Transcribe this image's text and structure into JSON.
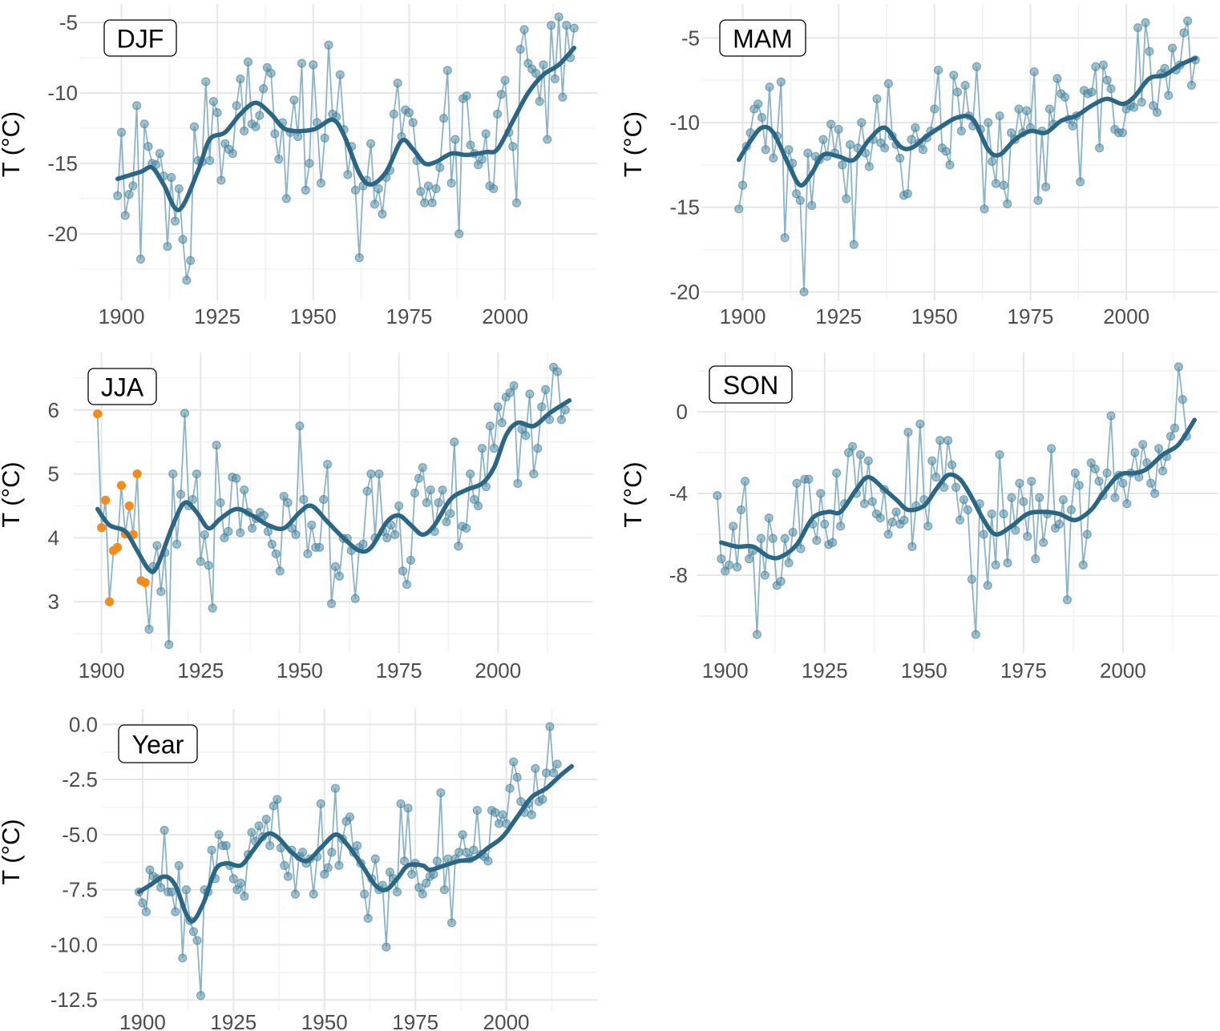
{
  "chart_data": [
    {
      "type": "line",
      "panel_label": "DJF",
      "ylabel": "T (°C)",
      "xlim": [
        1893,
        2024
      ],
      "ylim": [
        -24.5,
        -3.8
      ],
      "xticks": [
        "1900",
        "1925",
        "1950",
        "1975",
        "2000"
      ],
      "yticks": [
        "-5",
        "-10",
        "-15",
        "-20"
      ],
      "grid": true,
      "first_year": 1899,
      "values": [
        -17.3,
        -12.8,
        -18.7,
        -17.2,
        -16.6,
        -10.9,
        -21.8,
        -12.2,
        -13.8,
        -15.0,
        -15.1,
        -14.3,
        -15.9,
        -20.9,
        -16.0,
        -19.1,
        -16.8,
        -20.4,
        -23.3,
        -21.9,
        -12.4,
        -14.8,
        -14.9,
        -9.2,
        -14.8,
        -10.6,
        -11.4,
        -16.2,
        -13.6,
        -14.0,
        -14.3,
        -10.9,
        -9.0,
        -12.7,
        -7.8,
        -12.2,
        -12.4,
        -11.6,
        -9.7,
        -8.2,
        -8.6,
        -12.9,
        -14.7,
        -12.1,
        -17.5,
        -12.8,
        -10.5,
        -13.1,
        -7.9,
        -16.9,
        -15.0,
        -8.0,
        -12.1,
        -16.4,
        -13.2,
        -6.6,
        -11.5,
        -11.7,
        -8.7,
        -12.6,
        -15.8,
        -13.8,
        -16.9,
        -21.7,
        -16.6,
        -16.2,
        -13.6,
        -17.9,
        -16.8,
        -18.6,
        -16.0,
        -15.5,
        -11.5,
        -9.3,
        -13.1,
        -11.2,
        -11.4,
        -12.1,
        -14.8,
        -17.0,
        -17.8,
        -16.6,
        -17.8,
        -16.8,
        -15.3,
        -11.8,
        -8.4,
        -16.4,
        -13.3,
        -20.0,
        -10.4,
        -10.2,
        -13.7,
        -14.3,
        -15.1,
        -14.7,
        -12.9,
        -16.6,
        -16.8,
        -11.5,
        -10.1,
        -9.1,
        -12.8,
        -13.8,
        -17.8,
        -6.9,
        -5.5,
        -7.9,
        -8.3,
        -8.6,
        -10.6,
        -8.0,
        -13.3,
        -5.2,
        -9.0,
        -4.6,
        -10.3,
        -5.2,
        -7.5,
        -5.4
      ],
      "smooth": {
        "x": [
          1899,
          1905,
          1908,
          1911,
          1915,
          1920,
          1923,
          1927,
          1931,
          1935,
          1939,
          1943,
          1950,
          1955,
          1958,
          1962,
          1965,
          1969,
          1973,
          1976,
          1979,
          1982,
          1986,
          1990,
          1995,
          1998,
          2002,
          2006,
          2010,
          2014,
          2018
        ],
        "y": [
          -16.1,
          -15.6,
          -15.3,
          -16.5,
          -18.3,
          -15.5,
          -13.3,
          -12.8,
          -11.5,
          -10.7,
          -11.5,
          -12.6,
          -12.6,
          -11.9,
          -13.0,
          -15.7,
          -16.5,
          -15.6,
          -13.4,
          -14.0,
          -15.0,
          -14.9,
          -14.3,
          -14.4,
          -14.2,
          -14.0,
          -12.0,
          -10.0,
          -8.7,
          -8.0,
          -6.8
        ]
      }
    },
    {
      "type": "line",
      "panel_label": "MAM",
      "ylabel": "T (°C)",
      "xlim": [
        1893,
        2024
      ],
      "ylim": [
        -20.5,
        -3.0
      ],
      "xticks": [
        "1900",
        "1925",
        "1950",
        "1975",
        "2000"
      ],
      "yticks": [
        "-5",
        "-10",
        "-15",
        "-20"
      ],
      "grid": true,
      "first_year": 1899,
      "values": [
        -15.1,
        -13.7,
        -11.4,
        -10.6,
        -9.2,
        -8.9,
        -9.7,
        -11.6,
        -7.9,
        -12.1,
        -10.8,
        -7.6,
        -16.8,
        -11.6,
        -12.4,
        -14.2,
        -14.6,
        -20.0,
        -11.8,
        -14.9,
        -12.0,
        -12.2,
        -11.0,
        -12.0,
        -10.1,
        -11.8,
        -10.4,
        -12.5,
        -14.5,
        -11.3,
        -17.2,
        -11.5,
        -10.0,
        -11.8,
        -12.6,
        -11.0,
        -8.6,
        -11.2,
        -11.5,
        -7.7,
        -10.8,
        -11.3,
        -12.1,
        -14.3,
        -14.2,
        -11.0,
        -10.3,
        -11.2,
        -11.6,
        -10.9,
        -10.5,
        -9.2,
        -6.9,
        -11.5,
        -11.7,
        -12.5,
        -7.2,
        -8.2,
        -10.5,
        -7.8,
        -9.6,
        -10.2,
        -6.7,
        -10.4,
        -15.1,
        -10.0,
        -12.3,
        -13.6,
        -9.6,
        -13.7,
        -14.8,
        -10.6,
        -11.0,
        -9.2,
        -10.6,
        -9.3,
        -10.3,
        -7.0,
        -14.6,
        -10.5,
        -13.8,
        -9.2,
        -10.1,
        -7.4,
        -8.3,
        -8.5,
        -9.8,
        -10.2,
        -9.6,
        -13.5,
        -8.1,
        -8.3,
        -8.2,
        -6.7,
        -11.5,
        -6.6,
        -7.5,
        -8.0,
        -10.4,
        -10.6,
        -10.6,
        -9.2,
        -9.0,
        -9.1,
        -4.4,
        -8.8,
        -4.1,
        -5.8,
        -9.0,
        -9.4,
        -7.1,
        -6.8,
        -8.4,
        -5.6,
        -6.9,
        -6.6,
        -4.7,
        -4.0,
        -7.8,
        -6.3
      ],
      "smooth": {
        "x": [
          1899,
          1902,
          1905,
          1908,
          1912,
          1915,
          1918,
          1921,
          1925,
          1929,
          1933,
          1937,
          1941,
          1944,
          1948,
          1952,
          1956,
          1960,
          1964,
          1967,
          1971,
          1975,
          1979,
          1983,
          1987,
          1991,
          1995,
          1999,
          2002,
          2006,
          2010,
          2014,
          2018
        ],
        "y": [
          -12.2,
          -11.1,
          -10.3,
          -10.6,
          -12.5,
          -13.7,
          -13.0,
          -11.9,
          -12.0,
          -12.2,
          -11.0,
          -10.3,
          -11.4,
          -11.5,
          -10.8,
          -10.2,
          -9.7,
          -9.8,
          -11.6,
          -11.9,
          -11.0,
          -10.5,
          -10.6,
          -9.9,
          -9.6,
          -9.0,
          -8.6,
          -8.9,
          -8.5,
          -7.4,
          -7.2,
          -6.6,
          -6.2
        ]
      }
    },
    {
      "type": "line",
      "panel_label": "JJA",
      "ylabel": "T (°C)",
      "xlim": [
        1893,
        2024
      ],
      "ylim": [
        2.2,
        6.9
      ],
      "xticks": [
        "1900",
        "1925",
        "1950",
        "1975",
        "2000"
      ],
      "yticks": [
        "3",
        "4",
        "5",
        "6"
      ],
      "grid": true,
      "first_year": 1899,
      "highlight": {
        "years": [
          1899,
          1911
        ],
        "color": "#f28c1c"
      },
      "values": [
        5.94,
        4.16,
        4.59,
        3.0,
        3.8,
        3.85,
        4.82,
        4.06,
        4.5,
        4.05,
        5.0,
        3.33,
        3.3,
        2.57,
        3.55,
        3.88,
        3.16,
        3.77,
        2.33,
        5.0,
        3.9,
        4.68,
        5.95,
        4.5,
        4.6,
        5.0,
        3.63,
        4.05,
        3.57,
        2.9,
        5.45,
        4.55,
        4.0,
        4.1,
        4.95,
        4.93,
        4.08,
        4.75,
        4.4,
        4.15,
        4.3,
        4.4,
        4.35,
        4.1,
        3.9,
        3.75,
        3.48,
        4.65,
        4.55,
        4.15,
        4.05,
        5.75,
        4.6,
        3.75,
        4.2,
        3.85,
        3.85,
        4.6,
        5.15,
        2.97,
        3.55,
        3.4,
        3.99,
        3.99,
        3.8,
        3.05,
        3.85,
        3.9,
        4.73,
        5.0,
        4.0,
        5.0,
        4.1,
        4.0,
        4.2,
        4.05,
        4.5,
        3.48,
        3.27,
        3.65,
        4.7,
        4.93,
        5.1,
        4.55,
        4.75,
        4.1,
        4.55,
        4.75,
        4.25,
        4.38,
        5.5,
        3.87,
        4.18,
        4.15,
        5.0,
        4.6,
        4.5,
        5.4,
        4.8,
        5.75,
        5.4,
        6.05,
        5.8,
        6.2,
        6.27,
        6.38,
        4.85,
        5.7,
        5.6,
        6.25,
        5.0,
        5.4,
        6.05,
        6.32,
        5.85,
        6.67,
        6.6,
        5.85,
        6.0
      ],
      "smooth": {
        "x": [
          1899,
          1902,
          1906,
          1909,
          1912,
          1914,
          1918,
          1921,
          1924,
          1927,
          1930,
          1934,
          1938,
          1942,
          1946,
          1950,
          1953,
          1957,
          1961,
          1965,
          1968,
          1972,
          1975,
          1978,
          1981,
          1984,
          1988,
          1992,
          1996,
          1999,
          2002,
          2005,
          2009,
          2013,
          2018
        ],
        "y": [
          4.45,
          4.2,
          4.1,
          3.8,
          3.5,
          3.55,
          4.2,
          4.55,
          4.4,
          4.15,
          4.3,
          4.45,
          4.35,
          4.2,
          4.15,
          4.4,
          4.5,
          4.25,
          4.0,
          3.8,
          3.85,
          4.25,
          4.35,
          4.2,
          4.05,
          4.2,
          4.6,
          4.75,
          4.85,
          5.1,
          5.6,
          5.8,
          5.75,
          5.95,
          6.15
        ]
      }
    },
    {
      "type": "line",
      "panel_label": "SON",
      "ylabel": "T (°C)",
      "xlim": [
        1893,
        2024
      ],
      "ylim": [
        -11.8,
        2.9
      ],
      "xticks": [
        "1900",
        "1925",
        "1950",
        "1975",
        "2000"
      ],
      "yticks": [
        "0",
        "-4",
        "-8"
      ],
      "grid": true,
      "first_year": 1898,
      "values": [
        -4.1,
        -7.2,
        -7.8,
        -7.5,
        -5.6,
        -7.6,
        -4.8,
        -3.4,
        -7.2,
        -6.8,
        -10.9,
        -6.2,
        -8.0,
        -5.2,
        -6.2,
        -8.5,
        -8.3,
        -6.2,
        -7.4,
        -5.9,
        -3.5,
        -6.7,
        -3.3,
        -3.3,
        -5.5,
        -6.3,
        -4.0,
        -5.5,
        -6.5,
        -6.4,
        -3.0,
        -5.6,
        -4.5,
        -2.0,
        -1.7,
        -4.0,
        -2.1,
        -4.5,
        -2.4,
        -4.4,
        -5.0,
        -5.2,
        -3.8,
        -6.0,
        -5.4,
        -4.9,
        -5.5,
        -5.3,
        -1.0,
        -6.6,
        -4.6,
        -0.6,
        -4.3,
        -5.6,
        -2.4,
        -3.2,
        -1.4,
        -3.7,
        -1.4,
        -2.6,
        -3.7,
        -5.3,
        -4.3,
        -4.8,
        -8.2,
        -10.9,
        -4.5,
        -6.0,
        -8.5,
        -5.0,
        -7.5,
        -2.1,
        -5.0,
        -7.4,
        -4.2,
        -5.8,
        -3.5,
        -4.4,
        -6.1,
        -3.4,
        -7.2,
        -4.2,
        -6.4,
        -5.0,
        -1.8,
        -5.7,
        -5.5,
        -4.3,
        -9.2,
        -4.8,
        -3.0,
        -3.6,
        -7.5,
        -6.0,
        -2.5,
        -2.8,
        -3.4,
        -4.1,
        -3.0,
        -0.2,
        -4.2,
        -3.1,
        -3.5,
        -4.5,
        -3.0,
        -2.0,
        -3.2,
        -1.6,
        -2.5,
        -3.5,
        -4.0,
        -1.8,
        -2.9,
        -2.2,
        -1.2,
        -0.8,
        2.2,
        0.6,
        -1.2
      ],
      "smooth": {
        "x": [
          1899,
          1903,
          1907,
          1911,
          1914,
          1918,
          1922,
          1926,
          1929,
          1933,
          1936,
          1940,
          1943,
          1946,
          1950,
          1953,
          1956,
          1959,
          1962,
          1965,
          1968,
          1972,
          1976,
          1980,
          1984,
          1988,
          1992,
          1995,
          1999,
          2003,
          2006,
          2010,
          2014,
          2018
        ],
        "y": [
          -6.4,
          -6.6,
          -6.6,
          -7.1,
          -7.1,
          -6.5,
          -5.2,
          -4.9,
          -4.9,
          -3.8,
          -3.2,
          -3.8,
          -4.3,
          -4.8,
          -4.6,
          -3.8,
          -3.1,
          -3.3,
          -4.2,
          -5.3,
          -6.0,
          -5.6,
          -5.0,
          -4.9,
          -5.0,
          -5.3,
          -4.8,
          -4.0,
          -3.1,
          -3.0,
          -2.8,
          -2.1,
          -1.6,
          -0.4
        ]
      }
    },
    {
      "type": "line",
      "panel_label": "Year",
      "ylabel": "T (°C)",
      "xlim": [
        1889,
        2025
      ],
      "ylim": [
        -13.0,
        0.7
      ],
      "xticks": [
        "1900",
        "1925",
        "1950",
        "1975",
        "2000"
      ],
      "yticks": [
        "0.0",
        "-2.5",
        "-5.0",
        "-7.5",
        "-10.0",
        "-12.5"
      ],
      "grid": true,
      "first_year": 1899,
      "values": [
        -7.6,
        -8.1,
        -8.5,
        -6.6,
        -6.9,
        -7.0,
        -7.4,
        -4.8,
        -7.6,
        -7.6,
        -8.5,
        -6.4,
        -10.6,
        -7.5,
        -8.9,
        -9.4,
        -9.8,
        -12.3,
        -7.5,
        -7.6,
        -5.7,
        -7.0,
        -5.0,
        -5.5,
        -5.5,
        -6.4,
        -7.0,
        -7.5,
        -7.2,
        -7.8,
        -5.9,
        -4.9,
        -5.3,
        -4.6,
        -5.1,
        -4.3,
        -5.5,
        -3.7,
        -3.4,
        -5.6,
        -6.4,
        -6.9,
        -5.7,
        -7.7,
        -6.0,
        -5.8,
        -6.3,
        -6.1,
        -7.7,
        -6.0,
        -3.6,
        -6.8,
        -6.5,
        -5.8,
        -2.9,
        -6.4,
        -5.2,
        -4.4,
        -4.2,
        -5.8,
        -5.5,
        -6.3,
        -7.7,
        -8.8,
        -7.0,
        -6.1,
        -7.5,
        -7.3,
        -10.1,
        -6.7,
        -7.0,
        -7.6,
        -3.6,
        -6.2,
        -3.8,
        -6.8,
        -6.3,
        -7.4,
        -7.7,
        -7.2,
        -6.9,
        -6.8,
        -6.2,
        -3.1,
        -7.5,
        -6.1,
        -9.0,
        -6.1,
        -5.8,
        -5.0,
        -5.8,
        -6.1,
        -5.7,
        -3.9,
        -5.9,
        -6.0,
        -6.2,
        -3.9,
        -4.0,
        -4.5,
        -4.1,
        -4.5,
        -2.9,
        -1.7,
        -2.4,
        -3.5,
        -4.0,
        -3.6,
        -4.1,
        -2.0,
        -3.5,
        -3.4,
        -2.2,
        -0.1,
        -2.2,
        -1.8
      ],
      "smooth": {
        "x": [
          1899,
          1902,
          1906,
          1909,
          1912,
          1914,
          1917,
          1920,
          1923,
          1927,
          1930,
          1934,
          1937,
          1941,
          1945,
          1949,
          1953,
          1956,
          1960,
          1964,
          1967,
          1970,
          1973,
          1977,
          1979,
          1983,
          1987,
          1991,
          1995,
          1999,
          2003,
          2007,
          2011,
          2015,
          2018
        ],
        "y": [
          -7.6,
          -7.3,
          -6.9,
          -7.3,
          -8.6,
          -8.9,
          -8.0,
          -6.6,
          -6.3,
          -6.4,
          -5.8,
          -5.0,
          -5.1,
          -5.8,
          -6.2,
          -5.6,
          -5.0,
          -5.4,
          -6.3,
          -7.3,
          -7.5,
          -7.0,
          -6.4,
          -6.4,
          -6.6,
          -6.4,
          -6.2,
          -6.1,
          -5.6,
          -5.1,
          -4.2,
          -3.3,
          -2.9,
          -2.3,
          -1.9
        ]
      }
    }
  ],
  "colors": {
    "points": "#5b94ad",
    "points_stroke": "#2f6f8c",
    "connector": "#8db4c6",
    "smooth": "#2b6785",
    "grid_major": "#e6e6e6",
    "grid_minor": "#f2f2f2"
  }
}
